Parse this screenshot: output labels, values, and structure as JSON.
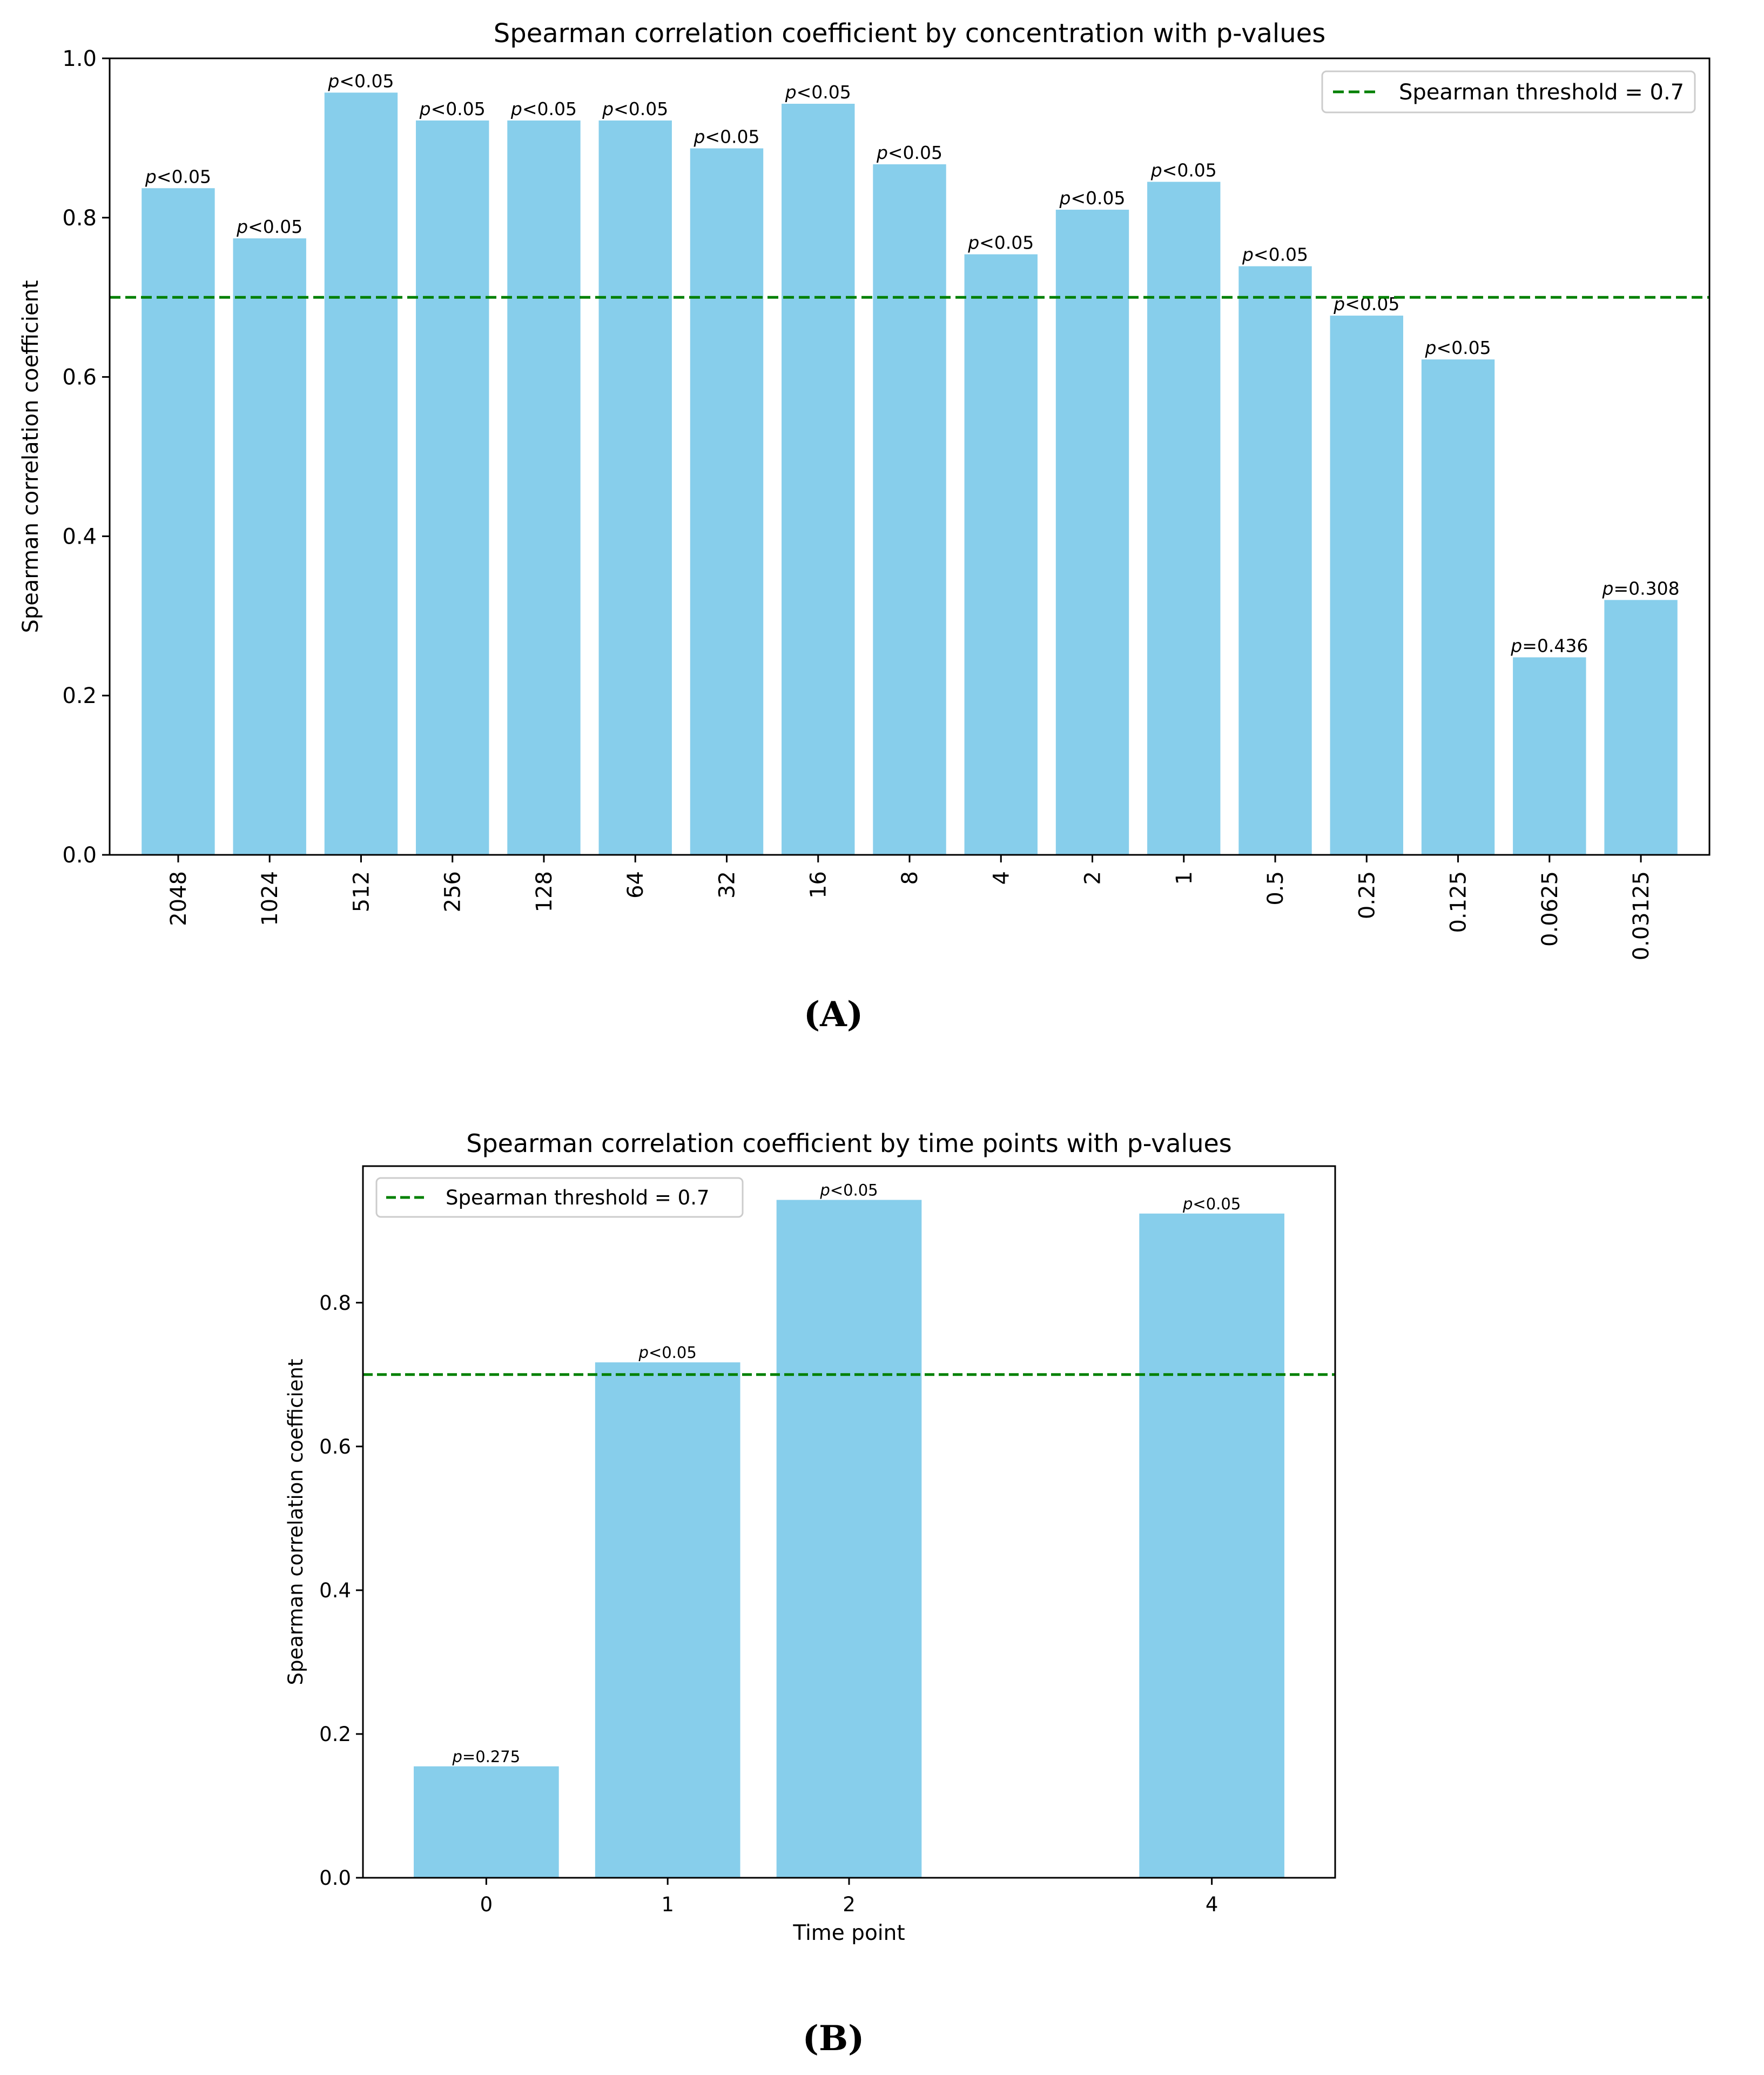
{
  "chart_data": [
    {
      "type": "bar",
      "panel_label": "(A)",
      "title": "Spearman correlation coefficient by concentration with p-values",
      "xlabel": "",
      "ylabel": "Spearman correlation coefficient",
      "categories": [
        "2048",
        "1024",
        "512",
        "256",
        "128",
        "64",
        "32",
        "16",
        "8",
        "4",
        "2",
        "1",
        "0.5",
        "0.25",
        "0.125",
        "0.0625",
        "0.03125"
      ],
      "values": [
        0.837,
        0.774,
        0.957,
        0.922,
        0.922,
        0.922,
        0.887,
        0.943,
        0.867,
        0.754,
        0.81,
        0.845,
        0.739,
        0.677,
        0.622,
        0.248,
        0.32
      ],
      "p_labels": [
        "p<0.05",
        "p<0.05",
        "p<0.05",
        "p<0.05",
        "p<0.05",
        "p<0.05",
        "p<0.05",
        "p<0.05",
        "p<0.05",
        "p<0.05",
        "p<0.05",
        "p<0.05",
        "p<0.05",
        "p<0.05",
        "p<0.05",
        "p=0.436",
        "p=0.308"
      ],
      "yticks": [
        "0.0",
        "0.2",
        "0.4",
        "0.6",
        "0.8",
        "1.0"
      ],
      "ylim": [
        0,
        1.0
      ],
      "threshold": 0.7,
      "legend": "Spearman threshold = 0.7",
      "legend_position": "top-right",
      "bar_color": "#87CEEB",
      "threshold_color": "#008000"
    },
    {
      "type": "bar",
      "panel_label": "(B)",
      "title": "Spearman correlation coefficient by time points with p-values",
      "xlabel": "Time point",
      "ylabel": "Spearman correlation coefficient",
      "x": [
        0,
        1,
        2,
        4
      ],
      "categories": [
        "0",
        "1",
        "2",
        "4"
      ],
      "values": [
        0.155,
        0.717,
        0.943,
        0.924
      ],
      "p_labels": [
        "p=0.275",
        "p<0.05",
        "p<0.05",
        "p<0.05"
      ],
      "yticks": [
        "0.0",
        "0.2",
        "0.4",
        "0.6",
        "0.8"
      ],
      "ylim": [
        0,
        0.99
      ],
      "xlim": [
        -0.68,
        4.68
      ],
      "threshold": 0.7,
      "legend": "Spearman threshold = 0.7",
      "legend_position": "top-left",
      "bar_color": "#87CEEB",
      "threshold_color": "#008000"
    }
  ]
}
